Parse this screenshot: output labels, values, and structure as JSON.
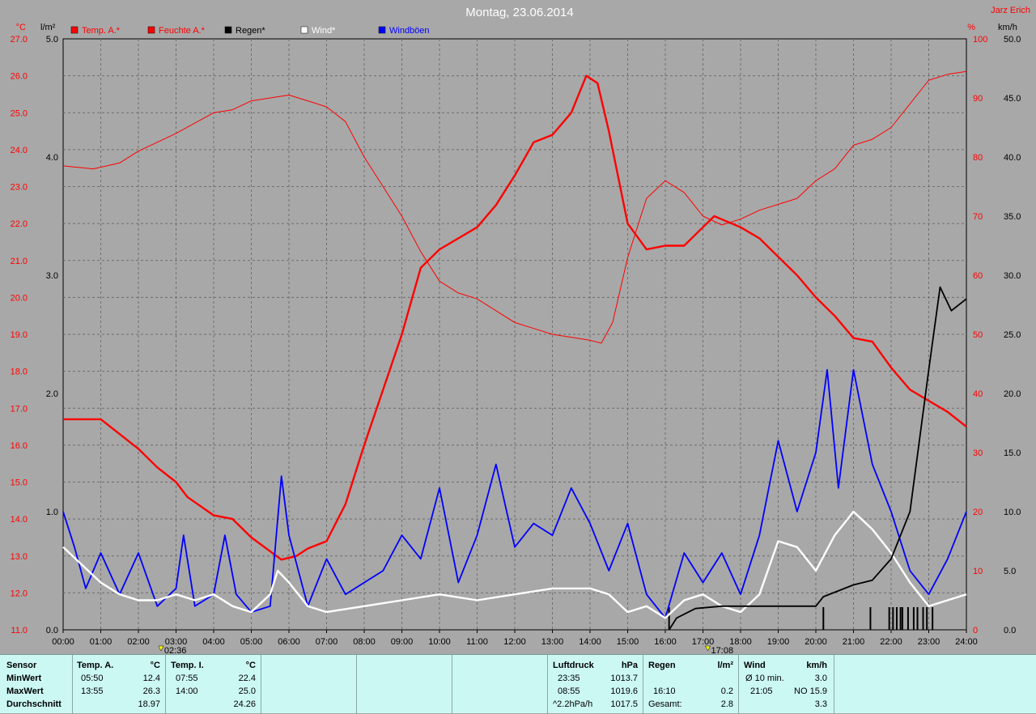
{
  "title": "Montag, 23.06.2014",
  "author": "Jarz Erich",
  "axes": {
    "left_temp": {
      "unit": "°C",
      "min": 11,
      "max": 27,
      "step": 1
    },
    "left_rain": {
      "unit": "l/m²",
      "min": 0,
      "max": 5,
      "step": 1
    },
    "right_hum": {
      "unit": "%",
      "min": 0,
      "max": 100,
      "step": 10
    },
    "right_wind": {
      "unit": "km/h",
      "min": 0,
      "max": 50,
      "step": 5
    },
    "x_ticks": [
      "00:00",
      "01:00",
      "02:00",
      "03:00",
      "04:00",
      "05:00",
      "06:00",
      "07:00",
      "08:00",
      "09:00",
      "10:00",
      "11:00",
      "12:00",
      "13:00",
      "14:00",
      "15:00",
      "16:00",
      "17:00",
      "18:00",
      "19:00",
      "20:00",
      "21:00",
      "22:00",
      "23:00",
      "24:00"
    ],
    "markers": [
      {
        "label": "02:36",
        "hour": 2.6
      },
      {
        "label": "17:08",
        "hour": 17.13
      }
    ]
  },
  "legend": [
    {
      "label": "Temp. A.*",
      "color": "#ff0000"
    },
    {
      "label": "Feuchte A.*",
      "color": "#ff0000"
    },
    {
      "label": "Regen*",
      "color": "#000000"
    },
    {
      "label": "Wind*",
      "color": "#ffffff"
    },
    {
      "label": "Windböen",
      "color": "#0000ff"
    }
  ],
  "chart_data": {
    "type": "line",
    "x_unit": "hour",
    "grid": true,
    "series": [
      {
        "name": "Temp. A.*",
        "axis": "°C",
        "color": "#ff0000",
        "points": [
          [
            0,
            16.7
          ],
          [
            0.5,
            16.7
          ],
          [
            1,
            16.7
          ],
          [
            1.5,
            16.3
          ],
          [
            2,
            15.9
          ],
          [
            2.5,
            15.4
          ],
          [
            3,
            15.0
          ],
          [
            3.3,
            14.6
          ],
          [
            4,
            14.1
          ],
          [
            4.5,
            14.0
          ],
          [
            5,
            13.5
          ],
          [
            5.8,
            12.9
          ],
          [
            6.2,
            13.0
          ],
          [
            6.5,
            13.2
          ],
          [
            7,
            13.4
          ],
          [
            7.5,
            14.4
          ],
          [
            8,
            16.0
          ],
          [
            8.5,
            17.5
          ],
          [
            9,
            19.0
          ],
          [
            9.5,
            20.8
          ],
          [
            10,
            21.3
          ],
          [
            10.5,
            21.6
          ],
          [
            11,
            21.9
          ],
          [
            11.5,
            22.5
          ],
          [
            12,
            23.3
          ],
          [
            12.5,
            24.2
          ],
          [
            13,
            24.4
          ],
          [
            13.5,
            25.0
          ],
          [
            13.9,
            26.0
          ],
          [
            14.2,
            25.8
          ],
          [
            14.5,
            24.5
          ],
          [
            15,
            22.0
          ],
          [
            15.5,
            21.3
          ],
          [
            16,
            21.4
          ],
          [
            16.5,
            21.4
          ],
          [
            17,
            21.9
          ],
          [
            17.3,
            22.2
          ],
          [
            18,
            21.9
          ],
          [
            18.5,
            21.6
          ],
          [
            19,
            21.1
          ],
          [
            19.5,
            20.6
          ],
          [
            20,
            20.0
          ],
          [
            20.5,
            19.5
          ],
          [
            21,
            18.9
          ],
          [
            21.5,
            18.8
          ],
          [
            22,
            18.1
          ],
          [
            22.5,
            17.5
          ],
          [
            23,
            17.2
          ],
          [
            23.5,
            16.9
          ],
          [
            24,
            16.5
          ]
        ]
      },
      {
        "name": "Feuchte A.*",
        "axis": "%",
        "color": "#ff0000",
        "points": [
          [
            0,
            78.5
          ],
          [
            0.8,
            78.0
          ],
          [
            1.5,
            79.0
          ],
          [
            2,
            81.0
          ],
          [
            3,
            84.0
          ],
          [
            4,
            87.5
          ],
          [
            4.5,
            88.0
          ],
          [
            5,
            89.5
          ],
          [
            5.5,
            90.0
          ],
          [
            6,
            90.5
          ],
          [
            6.5,
            89.5
          ],
          [
            7,
            88.5
          ],
          [
            7.5,
            86.0
          ],
          [
            8,
            80.0
          ],
          [
            8.5,
            75.0
          ],
          [
            9,
            70.0
          ],
          [
            9.5,
            64.0
          ],
          [
            10,
            59.0
          ],
          [
            10.5,
            57.0
          ],
          [
            11,
            56.0
          ],
          [
            11.5,
            54.0
          ],
          [
            12,
            52.0
          ],
          [
            12.5,
            51.0
          ],
          [
            13,
            50.0
          ],
          [
            13.5,
            49.5
          ],
          [
            14,
            49.0
          ],
          [
            14.3,
            48.5
          ],
          [
            14.6,
            52.0
          ],
          [
            15,
            63.0
          ],
          [
            15.5,
            73.0
          ],
          [
            16,
            76.0
          ],
          [
            16.5,
            74.0
          ],
          [
            17,
            70.0
          ],
          [
            17.5,
            68.5
          ],
          [
            18,
            69.5
          ],
          [
            18.5,
            71.0
          ],
          [
            19,
            72.0
          ],
          [
            19.5,
            73.0
          ],
          [
            20,
            76.0
          ],
          [
            20.5,
            78.0
          ],
          [
            21,
            82.0
          ],
          [
            21.5,
            83.0
          ],
          [
            22,
            85.0
          ],
          [
            22.5,
            89.0
          ],
          [
            23,
            93.0
          ],
          [
            23.5,
            94.0
          ],
          [
            24,
            94.5
          ]
        ]
      },
      {
        "name": "Regen*",
        "axis": "l/m²",
        "color": "#000000",
        "points": [
          [
            16.1,
            0.0
          ],
          [
            16.3,
            0.1
          ],
          [
            16.8,
            0.18
          ],
          [
            17.5,
            0.2
          ],
          [
            19,
            0.2
          ],
          [
            20,
            0.2
          ],
          [
            20.2,
            0.28
          ],
          [
            21,
            0.38
          ],
          [
            21.5,
            0.42
          ],
          [
            22,
            0.6
          ],
          [
            22.5,
            1.0
          ],
          [
            23,
            2.2
          ],
          [
            23.3,
            2.9
          ],
          [
            23.6,
            2.7
          ],
          [
            24,
            2.8
          ]
        ]
      },
      {
        "name": "Wind*",
        "axis": "km/h",
        "color": "#ffffff",
        "points": [
          [
            0,
            7.0
          ],
          [
            0.5,
            5.5
          ],
          [
            1,
            4.0
          ],
          [
            1.5,
            3.0
          ],
          [
            2,
            2.5
          ],
          [
            2.5,
            2.5
          ],
          [
            3,
            3.0
          ],
          [
            3.5,
            2.5
          ],
          [
            4,
            3.0
          ],
          [
            4.5,
            2.0
          ],
          [
            5,
            1.5
          ],
          [
            5.5,
            3.0
          ],
          [
            5.7,
            5.0
          ],
          [
            6,
            4.0
          ],
          [
            6.5,
            2.0
          ],
          [
            7,
            1.5
          ],
          [
            8,
            2.0
          ],
          [
            9,
            2.5
          ],
          [
            10,
            3.0
          ],
          [
            11,
            2.5
          ],
          [
            12,
            3.0
          ],
          [
            13,
            3.5
          ],
          [
            14,
            3.5
          ],
          [
            14.5,
            3.0
          ],
          [
            15,
            1.5
          ],
          [
            15.5,
            2.0
          ],
          [
            16,
            1.0
          ],
          [
            16.5,
            2.5
          ],
          [
            17,
            3.0
          ],
          [
            17.5,
            2.0
          ],
          [
            18,
            1.5
          ],
          [
            18.5,
            3.0
          ],
          [
            19,
            7.5
          ],
          [
            19.5,
            7.0
          ],
          [
            20,
            5.0
          ],
          [
            20.5,
            8.0
          ],
          [
            21,
            10.0
          ],
          [
            21.5,
            8.5
          ],
          [
            22,
            6.5
          ],
          [
            22.5,
            4.0
          ],
          [
            23,
            2.0
          ],
          [
            23.5,
            2.5
          ],
          [
            24,
            3.0
          ]
        ]
      },
      {
        "name": "Windböen",
        "axis": "km/h",
        "color": "#0000ff",
        "points": [
          [
            0,
            10.0
          ],
          [
            0.3,
            7.0
          ],
          [
            0.6,
            3.5
          ],
          [
            1,
            6.5
          ],
          [
            1.5,
            3.0
          ],
          [
            2,
            6.5
          ],
          [
            2.5,
            2.0
          ],
          [
            3,
            3.5
          ],
          [
            3.2,
            8.0
          ],
          [
            3.5,
            2.0
          ],
          [
            4,
            3.0
          ],
          [
            4.3,
            8.0
          ],
          [
            4.6,
            3.0
          ],
          [
            5,
            1.5
          ],
          [
            5.5,
            2.0
          ],
          [
            5.8,
            13.0
          ],
          [
            6,
            8.0
          ],
          [
            6.5,
            2.0
          ],
          [
            7,
            6.0
          ],
          [
            7.5,
            3.0
          ],
          [
            8,
            4.0
          ],
          [
            8.5,
            5.0
          ],
          [
            9,
            8.0
          ],
          [
            9.5,
            6.0
          ],
          [
            10,
            12.0
          ],
          [
            10.5,
            4.0
          ],
          [
            11,
            8.0
          ],
          [
            11.5,
            14.0
          ],
          [
            12,
            7.0
          ],
          [
            12.5,
            9.0
          ],
          [
            13,
            8.0
          ],
          [
            13.5,
            12.0
          ],
          [
            14,
            9.0
          ],
          [
            14.5,
            5.0
          ],
          [
            15,
            9.0
          ],
          [
            15.5,
            3.0
          ],
          [
            16,
            1.0
          ],
          [
            16.5,
            6.5
          ],
          [
            17,
            4.0
          ],
          [
            17.5,
            6.5
          ],
          [
            18,
            3.0
          ],
          [
            18.5,
            8.0
          ],
          [
            19,
            16.0
          ],
          [
            19.5,
            10.0
          ],
          [
            20,
            15.0
          ],
          [
            20.3,
            22.0
          ],
          [
            20.6,
            12.0
          ],
          [
            21,
            22.0
          ],
          [
            21.5,
            14.0
          ],
          [
            22,
            10.0
          ],
          [
            22.5,
            5.0
          ],
          [
            23,
            3.0
          ],
          [
            23.5,
            6.0
          ],
          [
            24,
            10.0
          ]
        ]
      }
    ]
  },
  "table": {
    "rowlabels": {
      "header": "Sensor",
      "min": "MinWert",
      "max": "MaxWert",
      "avg": "Durchschnitt"
    },
    "temp_a": {
      "header": "Temp. A.",
      "unit": "°C",
      "min_time": "05:50",
      "min_val": "12.4",
      "max_time": "13:55",
      "max_val": "26.3",
      "avg": "18.97"
    },
    "temp_i": {
      "header": "Temp. I.",
      "unit": "°C",
      "min_time": "07:55",
      "min_val": "22.4",
      "max_time": "14:00",
      "max_val": "25.0",
      "avg": "24.26"
    },
    "pressure": {
      "header": "Luftdruck",
      "unit": "hPa",
      "min_time": "23:35",
      "min_val": "1013.7",
      "max_time": "08:55",
      "max_val": "1019.6",
      "trend_label": "^2.2hPa/h",
      "trend_val": "1017.5"
    },
    "rain": {
      "header": "Regen",
      "unit": "l/m²",
      "max_time": "16:10",
      "max_val": "0.2",
      "total_label": "Gesamt:",
      "total_val": "2.8"
    },
    "wind": {
      "header": "Wind",
      "unit": "km/h",
      "min_label": "Ø 10 min.",
      "min_val": "3.0",
      "max_time": "21:05",
      "max_val": "NO 15.9",
      "avg": "3.3"
    }
  }
}
